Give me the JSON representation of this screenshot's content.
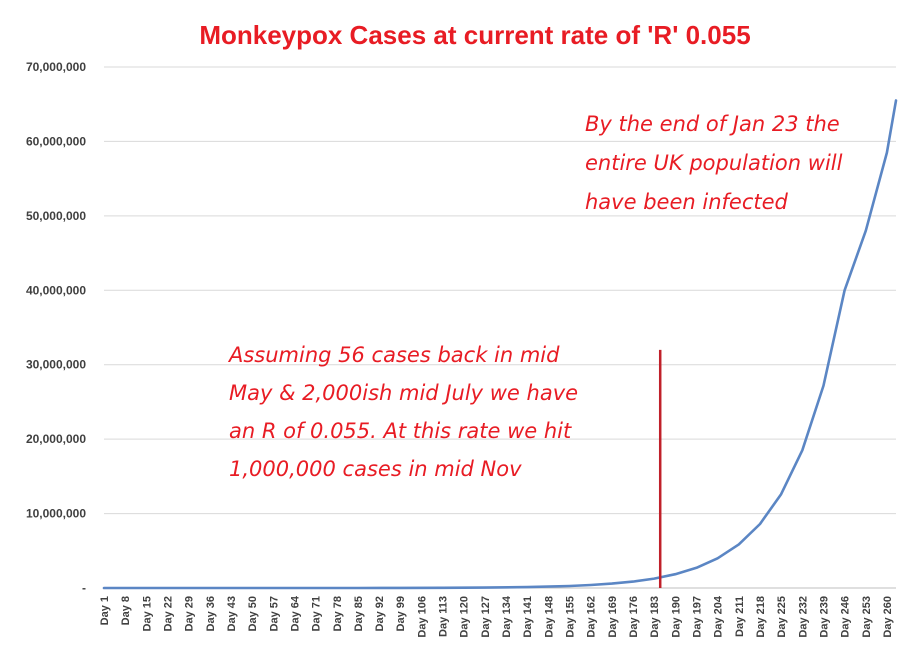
{
  "colors": {
    "title": "#e81c24",
    "annotation": "#e81c24",
    "series": "#5b86c4",
    "marker": "#c0202a",
    "grid": "#d9d9d9",
    "axis": "#bfbfbf"
  },
  "chart_data": {
    "type": "line",
    "title": "Monkeypox Cases at current rate of 'R' 0.055",
    "xlabel": "",
    "ylabel": "",
    "ylim": [
      0,
      70000000
    ],
    "xlim": [
      1,
      263
    ],
    "grid": true,
    "legend": "none",
    "growth_rate": 0.055,
    "y_ticks": [
      0,
      10000000,
      20000000,
      30000000,
      40000000,
      50000000,
      60000000,
      70000000
    ],
    "y_tick_labels": [
      "-",
      "10,000,000",
      "20,000,000",
      "30,000,000",
      "40,000,000",
      "50,000,000",
      "60,000,000",
      "70,000,000"
    ],
    "x_tick_values": [
      1,
      8,
      15,
      22,
      29,
      36,
      43,
      50,
      57,
      64,
      71,
      78,
      85,
      92,
      99,
      106,
      113,
      120,
      127,
      134,
      141,
      148,
      155,
      162,
      169,
      176,
      183,
      190,
      197,
      204,
      211,
      218,
      225,
      232,
      239,
      246,
      253,
      260
    ],
    "x_tick_labels": [
      "Day 1",
      "Day 8",
      "Day 15",
      "Day 22",
      "Day 29",
      "Day 36",
      "Day 43",
      "Day 50",
      "Day 57",
      "Day 64",
      "Day 71",
      "Day 78",
      "Day 85",
      "Day 92",
      "Day 99",
      "Day 106",
      "Day 113",
      "Day 120",
      "Day 127",
      "Day 134",
      "Day 141",
      "Day 148",
      "Day 155",
      "Day 162",
      "Day 169",
      "Day 176",
      "Day 183",
      "Day 190",
      "Day 197",
      "Day 204",
      "Day 211",
      "Day 218",
      "Day 225",
      "Day 232",
      "Day 239",
      "Day 246",
      "Day 253",
      "Day 260"
    ],
    "series": [
      {
        "x": [
          1,
          15,
          29,
          43,
          57,
          71,
          85,
          99,
          113,
          127,
          141,
          155,
          162,
          169,
          176,
          183,
          190,
          197,
          204,
          211,
          218,
          225,
          232,
          239,
          246,
          253,
          260,
          263
        ],
        "y": [
          60,
          120,
          270,
          580,
          1250,
          2700,
          5800,
          12600,
          27000,
          58500,
          126000,
          272000,
          400000,
          587000,
          860000,
          1260000,
          1850000,
          2720000,
          3990000,
          5860000,
          8600000,
          12600000,
          18500000,
          27200000,
          40000000,
          48000000,
          58500000,
          65500000
        ]
      }
    ],
    "vertical_marker": {
      "x": 185,
      "y_top": 32000000
    },
    "annotations": [
      {
        "name": "annotation-mid",
        "lines": [
          "Assuming 56 cases back in mid",
          "May & 2,000ish mid July we have",
          "an R of 0.055.  At this rate we hit",
          "1,000,000 cases in mid Nov"
        ]
      },
      {
        "name": "annotation-top",
        "lines": [
          "By the end of Jan 23 the",
          "entire UK population will",
          "have been infected"
        ]
      }
    ]
  }
}
